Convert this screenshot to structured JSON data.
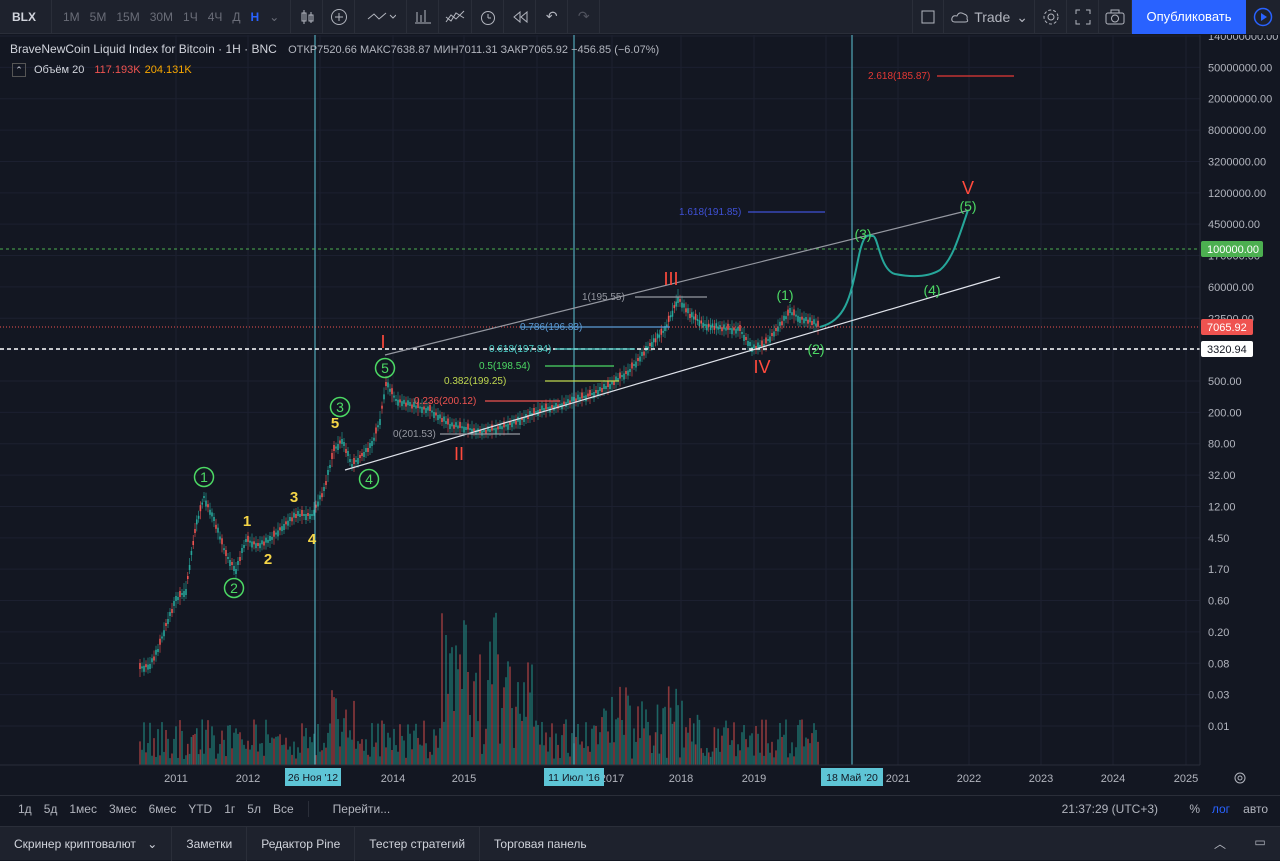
{
  "toolbar": {
    "symbol": "BLX",
    "intervals": [
      "1M",
      "5M",
      "15M",
      "30M",
      "1Ч",
      "4Ч",
      "Д",
      "Н"
    ],
    "active_interval": "Н",
    "trade_label": "Trade",
    "publish_label": "Опубликовать"
  },
  "legend": {
    "title": "BraveNewCoin Liquid Index for Bitcoin · 1H · BNC",
    "ohlc": "ОТКР7520.66 МАКС7638.87 МИН7011.31 ЗАКР7065.92 −456.85 (−6.07%)",
    "volume_label": "Объём 20",
    "volume_v1": "117.193K",
    "volume_v2": "204.131K"
  },
  "price_axis": {
    "ticks": [
      "140000000.00",
      "50000000.00",
      "20000000.00",
      "8000000.00",
      "3200000.00",
      "1200000.00",
      "450000.00",
      "170000.00",
      "60000.00",
      "22500.00",
      "1300.00",
      "500.00",
      "200.00",
      "80.00",
      "32.00",
      "12.00",
      "4.50",
      "1.70",
      "0.60",
      "0.20",
      "0.08",
      "0.03",
      "0.01"
    ],
    "badge_green": "100000.00",
    "badge_red": "7065.92",
    "badge_white": "3320.94"
  },
  "time_axis": {
    "ticks": [
      "2011",
      "2012",
      "2014",
      "2015",
      "2017",
      "2018",
      "2019",
      "2021",
      "2022",
      "2023",
      "2024",
      "2025"
    ],
    "markers": [
      "26 Ноя '12",
      "11 Июл '16",
      "18 Май '20"
    ]
  },
  "annotations": {
    "wave_labels_green": [
      "1",
      "2",
      "3",
      "4",
      "5",
      "(1)",
      "(2)",
      "(3)",
      "(4)",
      "(5)"
    ],
    "wave_labels_yellow": [
      "1",
      "2",
      "3",
      "4",
      "5"
    ],
    "wave_labels_red": [
      "I",
      "II",
      "III",
      "IV",
      "V"
    ],
    "fib_labels": [
      "0.786(196.83)",
      "0.618(197.84)",
      "0.5(198.54)",
      "0.382(199.25)",
      "0.236(200.12)",
      "0(201.53)",
      "1(195.55)",
      "1.618(191.85)",
      "2.618(185.87)"
    ]
  },
  "colors": {
    "background": "#131722",
    "accent": "#2962ff",
    "up": "#26a69a",
    "down": "#ef5350",
    "wave_green": "#4cd964",
    "wave_red": "#ff4a3d",
    "wave_yellow": "#f5d547"
  },
  "ranges": {
    "items": [
      "1д",
      "5д",
      "1мес",
      "3мес",
      "6мес",
      "YTD",
      "1г",
      "5л",
      "Все"
    ],
    "goto": "Перейти...",
    "time": "21:37:29 (UTC+3)",
    "pct": "%",
    "log": "лог",
    "auto": "авто"
  },
  "bottom_tabs": [
    "Скринер криптовалют",
    "Заметки",
    "Редактор Pine",
    "Тестер стратегий",
    "Торговая панель"
  ]
}
